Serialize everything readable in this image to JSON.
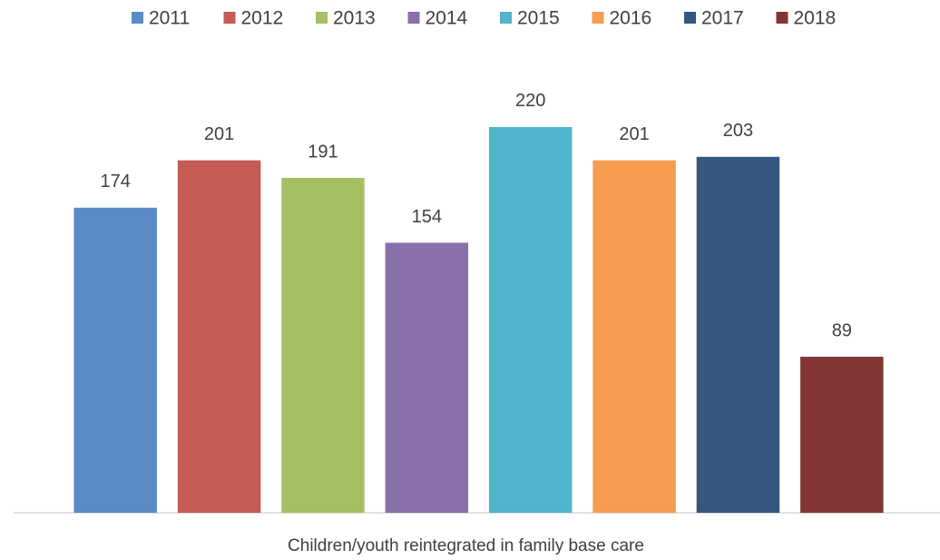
{
  "chart_data": {
    "type": "bar",
    "categories": [
      "Children/youth reintegrated in family base care"
    ],
    "series": [
      {
        "name": "2011",
        "color": "#5b8bc6",
        "values": [
          174
        ]
      },
      {
        "name": "2012",
        "color": "#c65a55",
        "values": [
          201
        ]
      },
      {
        "name": "2013",
        "color": "#a5c063",
        "values": [
          191
        ]
      },
      {
        "name": "2014",
        "color": "#8a70aa",
        "values": [
          154
        ]
      },
      {
        "name": "2015",
        "color": "#52b3cd",
        "values": [
          220
        ]
      },
      {
        "name": "2016",
        "color": "#f69d52",
        "values": [
          201
        ]
      },
      {
        "name": "2017",
        "color": "#35577f",
        "values": [
          203
        ]
      },
      {
        "name": "2018",
        "color": "#833535",
        "values": [
          89
        ]
      }
    ],
    "ylim": [
      0,
      250
    ],
    "legend": "top"
  }
}
